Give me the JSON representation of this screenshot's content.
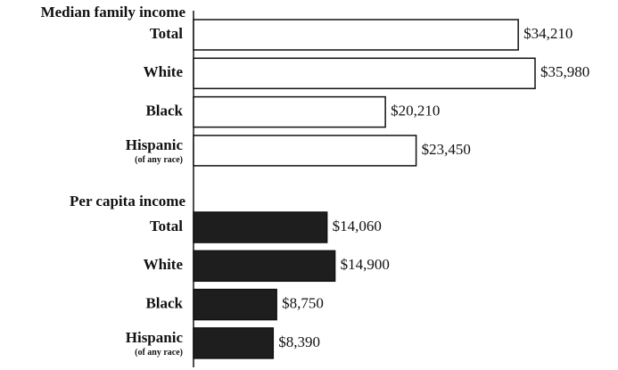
{
  "chart_data": [
    {
      "type": "bar",
      "title": "Median family income",
      "categories": [
        "Total",
        "White",
        "Black",
        "Hispanic"
      ],
      "category_notes": [
        null,
        null,
        null,
        "(of any race)"
      ],
      "values": [
        34210,
        35980,
        20210,
        23450
      ],
      "value_labels": [
        "$34,210",
        "$35,980",
        "$20,210",
        "$23,450"
      ],
      "color": "#ffffff"
    },
    {
      "type": "bar",
      "title": "Per capita income",
      "categories": [
        "Total",
        "White",
        "Black",
        "Hispanic"
      ],
      "category_notes": [
        null,
        null,
        null,
        "(of any race)"
      ],
      "values": [
        14060,
        14900,
        8750,
        8390
      ],
      "value_labels": [
        "$14,060",
        "$14,900",
        "$8,750",
        "$8,390"
      ],
      "color": "#1e1e1e"
    }
  ]
}
